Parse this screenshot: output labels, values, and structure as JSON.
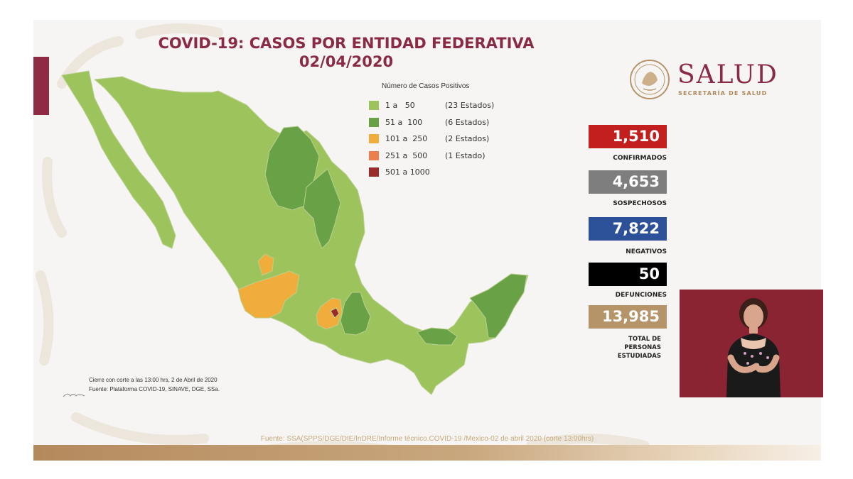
{
  "header": {
    "title": "COVID-19: CASOS POR ENTIDAD FEDERATIVA",
    "date": "02/04/2020"
  },
  "logo": {
    "name": "SALUD",
    "subtitle": "SECRETARÍA DE SALUD"
  },
  "legend": {
    "title": "Número de Casos Positivos",
    "items": [
      {
        "range": "1 a   50",
        "count": "(23 Estados)",
        "color": "#9dc35c"
      },
      {
        "range": "51 a  100",
        "count": "(6 Estados)",
        "color": "#68a146"
      },
      {
        "range": "101 a  250",
        "count": "(2 Estados)",
        "color": "#f0ad3c"
      },
      {
        "range": "251 a  500",
        "count": "(1 Estado)",
        "color": "#ec7f4b"
      },
      {
        "range": "501 a 1000",
        "count": "",
        "color": "#9a2b2d"
      }
    ]
  },
  "stats": [
    {
      "value": "1,510",
      "label": "CONFIRMADOS",
      "color": "#c41f1f"
    },
    {
      "value": "4,653",
      "label": "SOSPECHOSOS",
      "color": "#7e7e7e"
    },
    {
      "value": "7,822",
      "label": "NEGATIVOS",
      "color": "#2d5199"
    },
    {
      "value": "50",
      "label": "DEFUNCIONES",
      "color": "#000000"
    },
    {
      "value": "13,985",
      "label_lines": [
        "TOTAL DE",
        "PERSONAS",
        "ESTUDIADAS"
      ],
      "color": "#b6946a"
    }
  ],
  "notes": {
    "cutoff": "Cierre con corte a las 13:00 hrs, 2 de Abril de 2020",
    "source_small": "Fuente: Plataforma COVID-19, SINAVE, DGE, SSa.",
    "source_bottom": "Fuente: SSA(SPPS/DGE/DIE/InDRE/Informe técnico.COVID-19 /Mexico-02 de abril 2020 (corte 13:00hrs)"
  },
  "colors": {
    "brand": "#8b2a45",
    "gold": "#b6946a",
    "map_light": "#9dc35c",
    "map_medium": "#68a146",
    "map_orange": "#f0ad3c",
    "map_dark": "#9a2b2d"
  }
}
